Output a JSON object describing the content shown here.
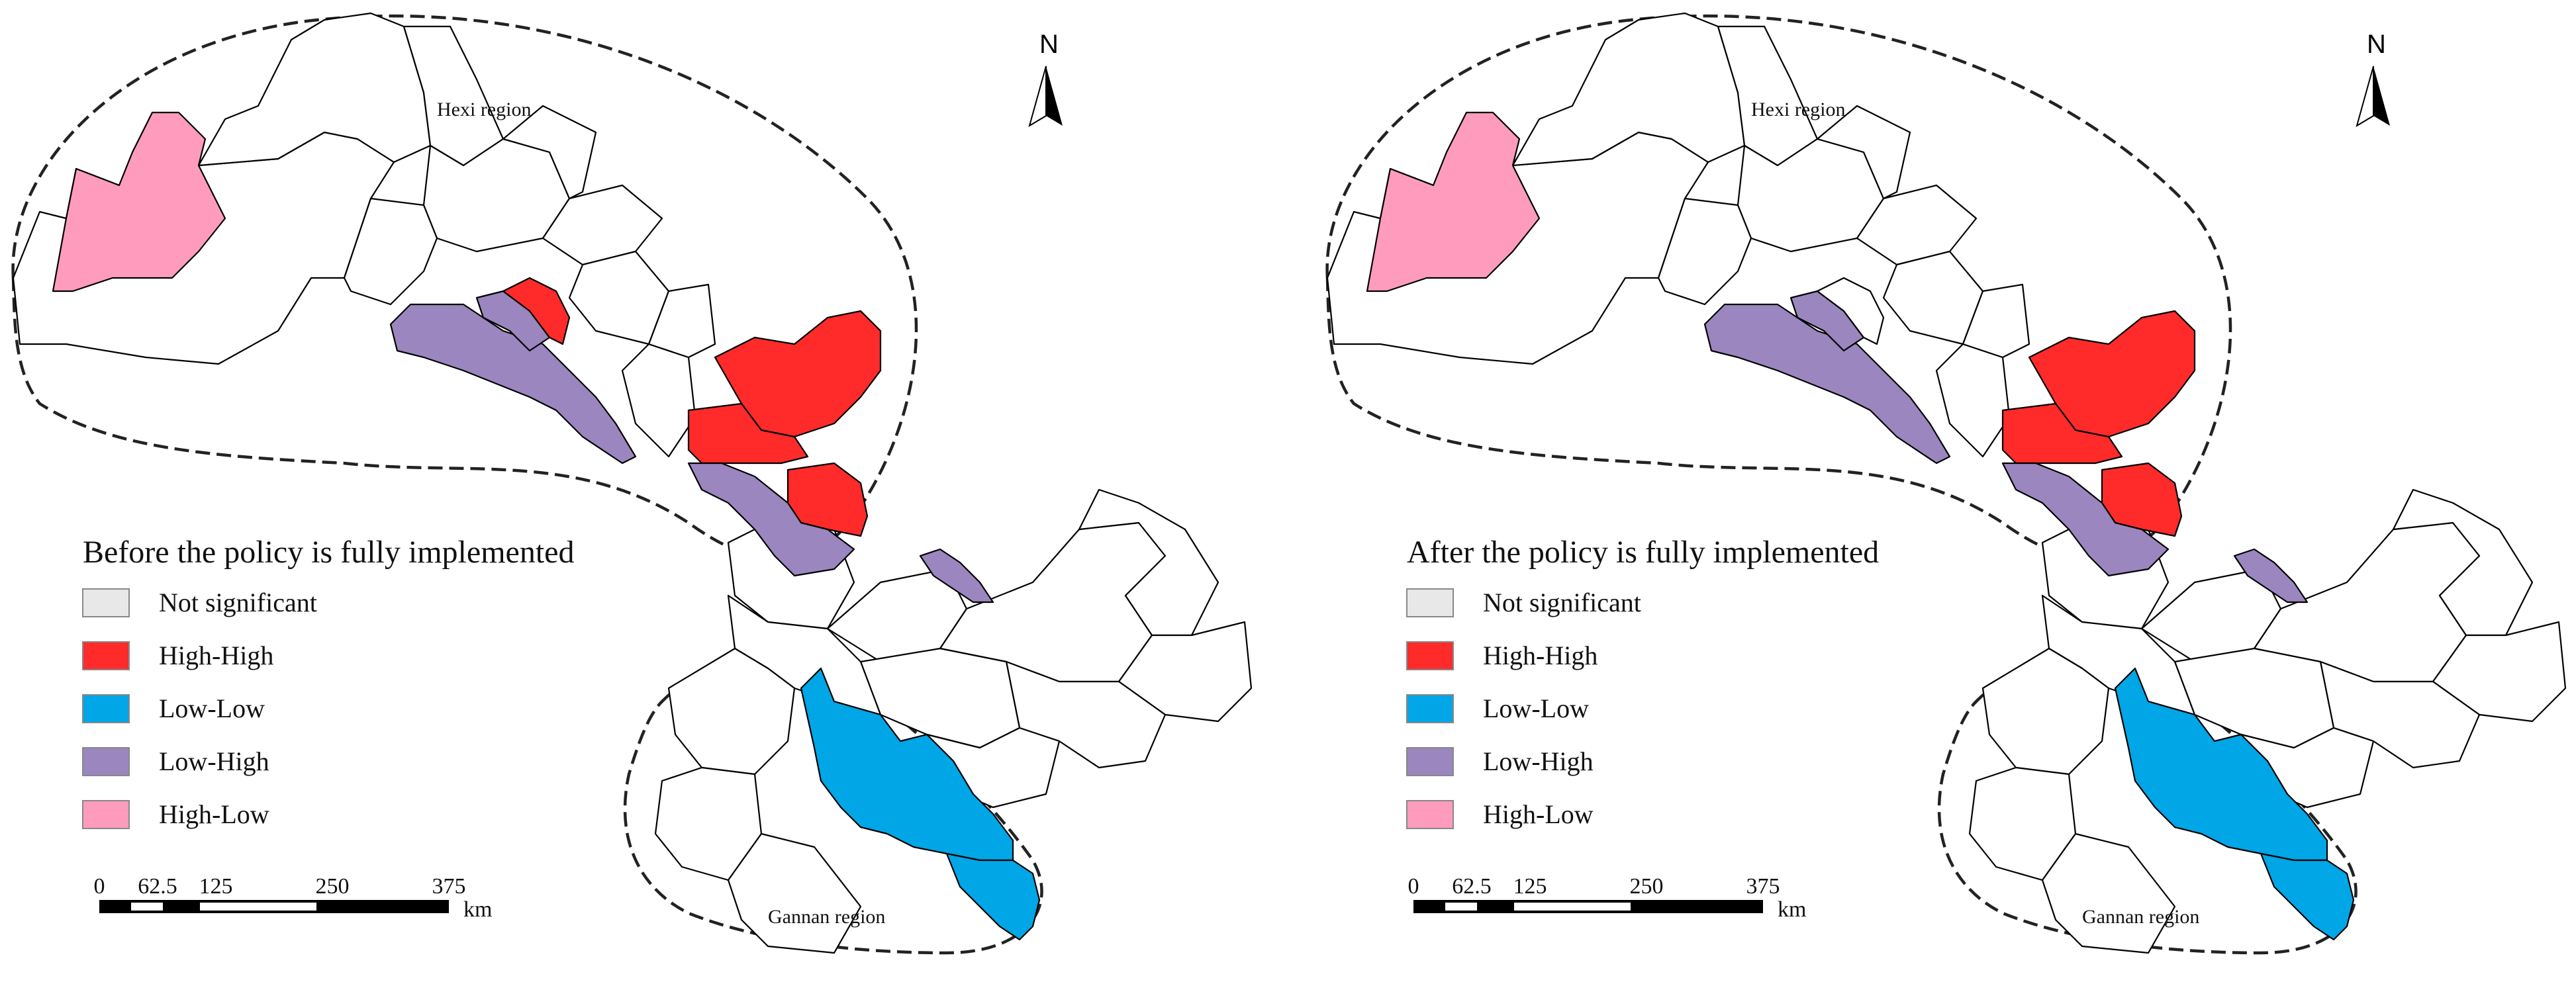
{
  "categories": [
    {
      "key": "ns",
      "label": "Not significant",
      "color": "#e8e8e8"
    },
    {
      "key": "hh",
      "label": "High-High",
      "color": "#ff2b2b"
    },
    {
      "key": "ll",
      "label": "Low-Low",
      "color": "#00a6e6"
    },
    {
      "key": "lh",
      "label": "Low-High",
      "color": "#9b86bf"
    },
    {
      "key": "hl",
      "label": "High-Low",
      "color": "#ff9cbd"
    }
  ],
  "north_label": "N",
  "region_labels": {
    "hexi": "Hexi region",
    "gannan": "Gannan region"
  },
  "scale_bar": {
    "ticks": [
      "0",
      "62.5",
      "125",
      "250",
      "375"
    ],
    "unit": "km"
  },
  "panels": [
    {
      "id": "before",
      "title": "Before the policy is fully implemented",
      "assignments": {
        "hexi_far_west": "hl",
        "hexi_corridor": "lh",
        "hexi_small_core": "lh",
        "hexi_north_block": "hh",
        "hexi_red_small": "hh",
        "hexi_middle_block": "hh",
        "hexi_south_block": "hh",
        "hexi_purple_tail": "lh",
        "hexi_east_purple": "lh",
        "gannan_core": "ll",
        "gannan_east": "ll"
      }
    },
    {
      "id": "after",
      "title": "After the policy is fully implemented",
      "assignments": {
        "hexi_far_west": "hl",
        "hexi_corridor": "lh",
        "hexi_small_core": "lh",
        "hexi_north_block": "hh",
        "hexi_red_small": "ns",
        "hexi_middle_block": "hh",
        "hexi_south_block": "hh",
        "hexi_purple_tail": "lh",
        "hexi_east_purple": "lh",
        "gannan_core": "ll",
        "gannan_east": "ll"
      }
    }
  ]
}
